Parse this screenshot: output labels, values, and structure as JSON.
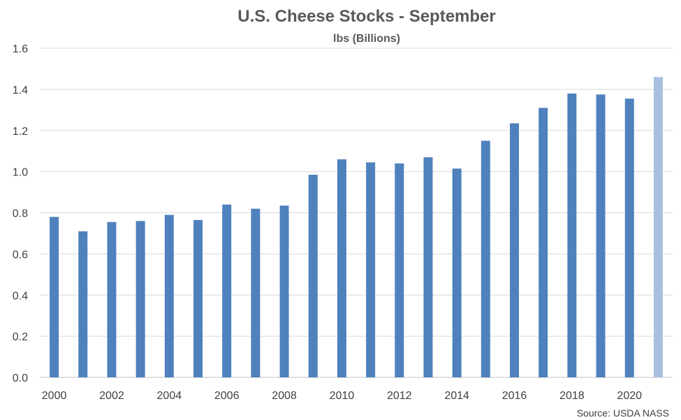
{
  "chart_data": {
    "type": "bar",
    "title": "U.S. Cheese Stocks - September",
    "subtitle": "lbs (Billions)",
    "source": "Source: USDA NASS",
    "categories": [
      "2000",
      "2001",
      "2002",
      "2003",
      "2004",
      "2005",
      "2006",
      "2007",
      "2008",
      "2009",
      "2010",
      "2011",
      "2012",
      "2013",
      "2014",
      "2015",
      "2016",
      "2017",
      "2018",
      "2019",
      "2020",
      "2021"
    ],
    "x_tick_labels": [
      "2000",
      "2002",
      "2004",
      "2006",
      "2008",
      "2010",
      "2012",
      "2014",
      "2016",
      "2018",
      "2020"
    ],
    "values": [
      0.78,
      0.71,
      0.755,
      0.76,
      0.79,
      0.765,
      0.84,
      0.82,
      0.835,
      0.985,
      1.06,
      1.045,
      1.04,
      1.07,
      1.015,
      1.15,
      1.235,
      1.31,
      1.38,
      1.375,
      1.355,
      1.46
    ],
    "highlight_last": true,
    "ylim": [
      0,
      1.6
    ],
    "y_ticks": [
      "0.0",
      "0.2",
      "0.4",
      "0.6",
      "0.8",
      "1.0",
      "1.2",
      "1.4",
      "1.6"
    ],
    "grid": true,
    "colors": {
      "bar": "#4F81BD",
      "bar_highlight": "#A7C0DE",
      "grid": "#D9D9D9",
      "axis": "#BFBFBF",
      "title": "#595959"
    }
  }
}
